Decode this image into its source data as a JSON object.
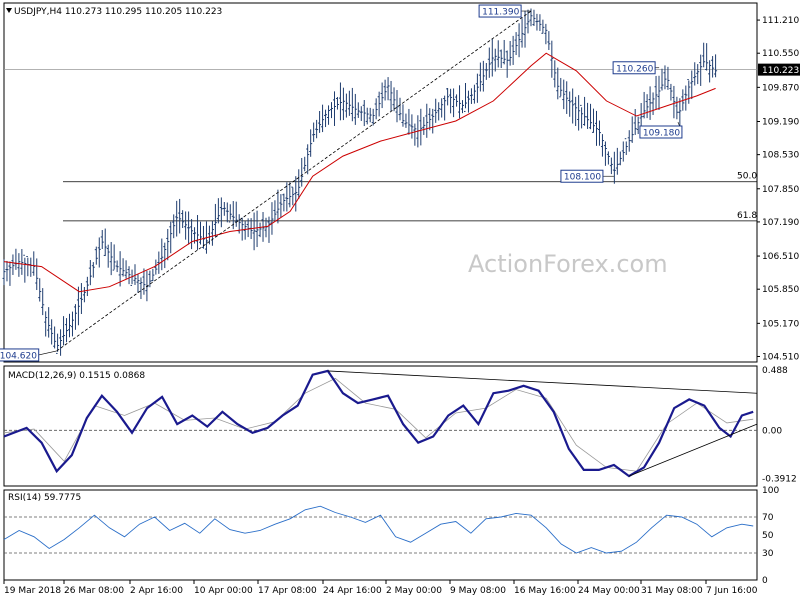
{
  "chart_data": [
    {
      "type": "candlestick",
      "header": {
        "symbol": "USDJPY,H4",
        "open": "110.273",
        "high": "110.295",
        "low": "110.205",
        "close": "110.223"
      },
      "watermark": "ActionForex.com",
      "ylim": [
        104.4,
        111.55
      ],
      "y_ticks": [
        "111.210",
        "110.550",
        "109.870",
        "109.190",
        "108.530",
        "107.850",
        "107.190",
        "106.510",
        "105.850",
        "105.170",
        "104.510"
      ],
      "current_price": "110.223",
      "x_tick_labels": [
        "19 Mar 2018",
        "26 Mar 08:00",
        "2 Apr 16:00",
        "10 Apr 00:00",
        "17 Apr 08:00",
        "24 Apr 16:00",
        "2 May 00:00",
        "9 May 08:00",
        "16 May 16:00",
        "24 May 00:00",
        "31 May 08:00",
        "7 Jun 16:00"
      ],
      "fib_levels": [
        {
          "label": "50.0",
          "value": 107.99
        },
        {
          "label": "61.8",
          "value": 107.21
        }
      ],
      "annotations": [
        {
          "label": "104.620",
          "value": 104.62,
          "t": 0.07
        },
        {
          "label": "111.390",
          "value": 111.39,
          "t": 0.7
        },
        {
          "label": "108.100",
          "value": 108.1,
          "t": 0.81
        },
        {
          "label": "110.260",
          "value": 110.26,
          "t": 0.87
        },
        {
          "label": "109.180",
          "value": 109.18,
          "t": 0.895
        }
      ],
      "price_path": [
        [
          0,
          106.2
        ],
        [
          0.02,
          106.4
        ],
        [
          0.04,
          106.3
        ],
        [
          0.055,
          105.3
        ],
        [
          0.07,
          104.7
        ],
        [
          0.09,
          105.2
        ],
        [
          0.11,
          105.9
        ],
        [
          0.13,
          106.8
        ],
        [
          0.15,
          106.3
        ],
        [
          0.17,
          106.1
        ],
        [
          0.19,
          105.9
        ],
        [
          0.21,
          106.5
        ],
        [
          0.23,
          107.3
        ],
        [
          0.25,
          107.0
        ],
        [
          0.27,
          106.8
        ],
        [
          0.29,
          107.5
        ],
        [
          0.31,
          107.2
        ],
        [
          0.33,
          107.0
        ],
        [
          0.35,
          107.1
        ],
        [
          0.37,
          107.6
        ],
        [
          0.39,
          107.8
        ],
        [
          0.41,
          108.9
        ],
        [
          0.43,
          109.4
        ],
        [
          0.45,
          109.6
        ],
        [
          0.47,
          109.4
        ],
        [
          0.49,
          109.3
        ],
        [
          0.51,
          109.9
        ],
        [
          0.53,
          109.2
        ],
        [
          0.55,
          109.0
        ],
        [
          0.57,
          109.3
        ],
        [
          0.59,
          109.7
        ],
        [
          0.61,
          109.5
        ],
        [
          0.63,
          109.9
        ],
        [
          0.65,
          110.5
        ],
        [
          0.67,
          110.4
        ],
        [
          0.69,
          111.0
        ],
        [
          0.7,
          111.3
        ],
        [
          0.72,
          111.0
        ],
        [
          0.735,
          109.9
        ],
        [
          0.75,
          109.6
        ],
        [
          0.77,
          109.3
        ],
        [
          0.79,
          109.0
        ],
        [
          0.81,
          108.2
        ],
        [
          0.83,
          108.8
        ],
        [
          0.85,
          109.4
        ],
        [
          0.87,
          109.8
        ],
        [
          0.88,
          110.1
        ],
        [
          0.895,
          109.3
        ],
        [
          0.91,
          109.9
        ],
        [
          0.93,
          110.4
        ],
        [
          0.945,
          110.2
        ]
      ],
      "ma_path": [
        [
          0,
          106.4
        ],
        [
          0.05,
          106.3
        ],
        [
          0.1,
          105.8
        ],
        [
          0.14,
          105.9
        ],
        [
          0.2,
          106.3
        ],
        [
          0.25,
          106.8
        ],
        [
          0.3,
          107.0
        ],
        [
          0.35,
          107.1
        ],
        [
          0.38,
          107.4
        ],
        [
          0.41,
          108.1
        ],
        [
          0.45,
          108.5
        ],
        [
          0.5,
          108.8
        ],
        [
          0.55,
          109.0
        ],
        [
          0.6,
          109.2
        ],
        [
          0.65,
          109.6
        ],
        [
          0.7,
          110.3
        ],
        [
          0.72,
          110.55
        ],
        [
          0.76,
          110.2
        ],
        [
          0.8,
          109.6
        ],
        [
          0.84,
          109.3
        ],
        [
          0.88,
          109.5
        ],
        [
          0.92,
          109.7
        ],
        [
          0.945,
          109.85
        ]
      ],
      "trendlines": [
        {
          "from": [
            0.07,
            104.62
          ],
          "to": [
            0.7,
            111.39
          ],
          "style": "dashed"
        }
      ]
    },
    {
      "type": "line",
      "title": "MACD(12,26,9) 0.1515 0.0868",
      "ylim": [
        -0.45,
        0.52
      ],
      "y_ticks": [
        "0.488",
        "0.00",
        "-0.3912"
      ],
      "zero_level": 0,
      "macd_path": [
        [
          0,
          -0.05
        ],
        [
          0.03,
          0.02
        ],
        [
          0.05,
          -0.1
        ],
        [
          0.07,
          -0.33
        ],
        [
          0.09,
          -0.2
        ],
        [
          0.11,
          0.1
        ],
        [
          0.13,
          0.28
        ],
        [
          0.15,
          0.15
        ],
        [
          0.17,
          -0.02
        ],
        [
          0.19,
          0.18
        ],
        [
          0.21,
          0.27
        ],
        [
          0.23,
          0.05
        ],
        [
          0.25,
          0.12
        ],
        [
          0.27,
          0.03
        ],
        [
          0.29,
          0.15
        ],
        [
          0.31,
          0.05
        ],
        [
          0.33,
          -0.02
        ],
        [
          0.35,
          0.02
        ],
        [
          0.37,
          0.12
        ],
        [
          0.39,
          0.2
        ],
        [
          0.41,
          0.45
        ],
        [
          0.43,
          0.48
        ],
        [
          0.45,
          0.3
        ],
        [
          0.47,
          0.22
        ],
        [
          0.49,
          0.25
        ],
        [
          0.51,
          0.28
        ],
        [
          0.53,
          0.05
        ],
        [
          0.55,
          -0.1
        ],
        [
          0.57,
          -0.05
        ],
        [
          0.59,
          0.12
        ],
        [
          0.61,
          0.2
        ],
        [
          0.63,
          0.05
        ],
        [
          0.65,
          0.3
        ],
        [
          0.67,
          0.32
        ],
        [
          0.69,
          0.36
        ],
        [
          0.71,
          0.32
        ],
        [
          0.73,
          0.15
        ],
        [
          0.75,
          -0.15
        ],
        [
          0.77,
          -0.32
        ],
        [
          0.79,
          -0.32
        ],
        [
          0.81,
          -0.28
        ],
        [
          0.83,
          -0.37
        ],
        [
          0.85,
          -0.3
        ],
        [
          0.87,
          -0.1
        ],
        [
          0.89,
          0.18
        ],
        [
          0.91,
          0.25
        ],
        [
          0.93,
          0.2
        ],
        [
          0.95,
          0.02
        ],
        [
          0.965,
          -0.05
        ],
        [
          0.98,
          0.12
        ],
        [
          0.995,
          0.15
        ]
      ],
      "signal_path": [
        [
          0,
          -0.02
        ],
        [
          0.04,
          0.01
        ],
        [
          0.08,
          -0.25
        ],
        [
          0.12,
          0.2
        ],
        [
          0.16,
          0.12
        ],
        [
          0.2,
          0.22
        ],
        [
          0.24,
          0.08
        ],
        [
          0.28,
          0.1
        ],
        [
          0.32,
          0.01
        ],
        [
          0.36,
          0.07
        ],
        [
          0.4,
          0.3
        ],
        [
          0.44,
          0.42
        ],
        [
          0.48,
          0.22
        ],
        [
          0.52,
          0.17
        ],
        [
          0.56,
          -0.06
        ],
        [
          0.6,
          0.14
        ],
        [
          0.64,
          0.18
        ],
        [
          0.68,
          0.33
        ],
        [
          0.72,
          0.26
        ],
        [
          0.76,
          -0.12
        ],
        [
          0.8,
          -0.3
        ],
        [
          0.84,
          -0.33
        ],
        [
          0.88,
          0.05
        ],
        [
          0.92,
          0.22
        ],
        [
          0.96,
          0.06
        ],
        [
          0.995,
          0.09
        ]
      ],
      "trendlines": [
        {
          "from": [
            0.43,
            0.48
          ],
          "to": [
            1.0,
            0.3
          ]
        },
        {
          "from": [
            0.83,
            -0.37
          ],
          "to": [
            1.0,
            0.05
          ]
        }
      ]
    },
    {
      "type": "line",
      "title": "RSI(14) 59.7775",
      "ylim": [
        0,
        100
      ],
      "y_ticks": [
        "100",
        "70",
        "50",
        "30",
        "0"
      ],
      "levels": [
        30,
        70
      ],
      "rsi_path": [
        [
          0,
          45
        ],
        [
          0.02,
          55
        ],
        [
          0.04,
          48
        ],
        [
          0.06,
          35
        ],
        [
          0.08,
          45
        ],
        [
          0.1,
          58
        ],
        [
          0.12,
          72
        ],
        [
          0.14,
          58
        ],
        [
          0.16,
          48
        ],
        [
          0.18,
          62
        ],
        [
          0.2,
          70
        ],
        [
          0.22,
          55
        ],
        [
          0.24,
          63
        ],
        [
          0.26,
          52
        ],
        [
          0.28,
          68
        ],
        [
          0.3,
          56
        ],
        [
          0.32,
          52
        ],
        [
          0.34,
          55
        ],
        [
          0.36,
          62
        ],
        [
          0.38,
          68
        ],
        [
          0.4,
          78
        ],
        [
          0.42,
          82
        ],
        [
          0.44,
          75
        ],
        [
          0.46,
          70
        ],
        [
          0.48,
          64
        ],
        [
          0.5,
          72
        ],
        [
          0.52,
          48
        ],
        [
          0.54,
          42
        ],
        [
          0.56,
          52
        ],
        [
          0.58,
          62
        ],
        [
          0.6,
          65
        ],
        [
          0.62,
          52
        ],
        [
          0.64,
          68
        ],
        [
          0.66,
          70
        ],
        [
          0.68,
          74
        ],
        [
          0.7,
          72
        ],
        [
          0.72,
          58
        ],
        [
          0.74,
          40
        ],
        [
          0.76,
          30
        ],
        [
          0.78,
          36
        ],
        [
          0.8,
          30
        ],
        [
          0.82,
          32
        ],
        [
          0.84,
          42
        ],
        [
          0.86,
          58
        ],
        [
          0.88,
          72
        ],
        [
          0.9,
          70
        ],
        [
          0.92,
          62
        ],
        [
          0.94,
          48
        ],
        [
          0.96,
          58
        ],
        [
          0.98,
          62
        ],
        [
          0.995,
          60
        ]
      ]
    }
  ]
}
